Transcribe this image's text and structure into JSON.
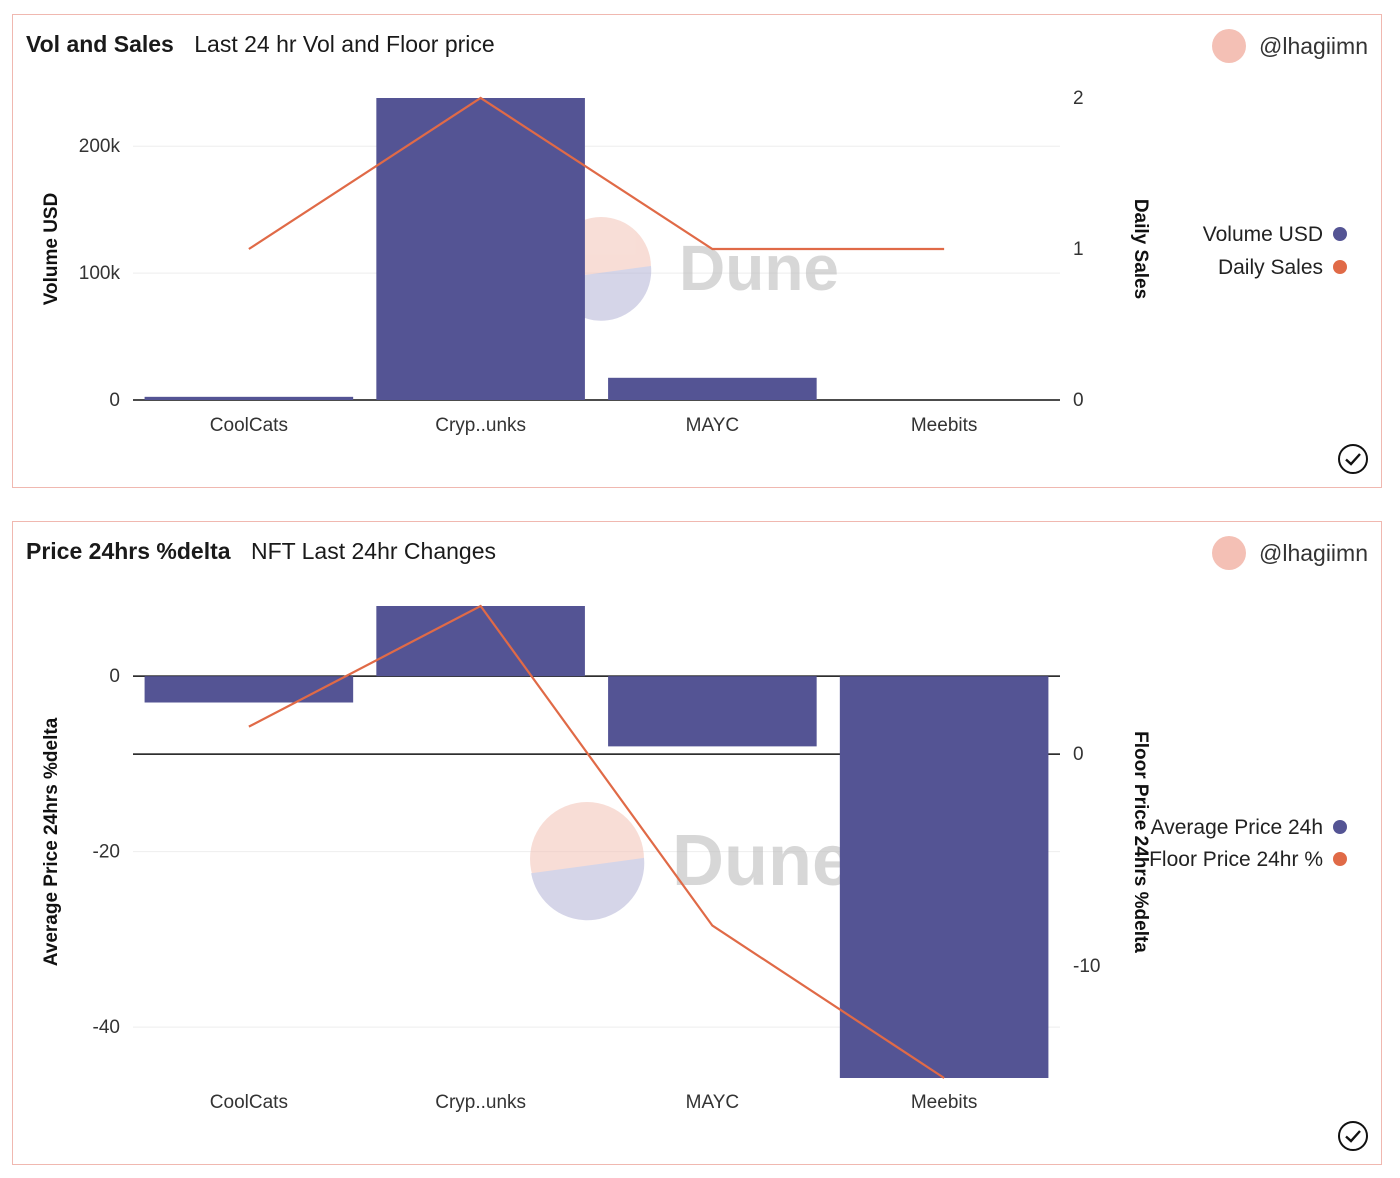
{
  "charts": [
    {
      "title": "Vol and Sales",
      "subtitle": "Last 24 hr Vol and Floor price",
      "author": "@lhagiimn",
      "watermark": "Dune"
    },
    {
      "title": "Price 24hrs %delta",
      "subtitle": "NFT Last 24hr Changes",
      "author": "@lhagiimn",
      "watermark": "Dune"
    }
  ],
  "colors": {
    "bar": "#545494",
    "line": "#e06a47",
    "border": "#f0b8b0",
    "avatar": "#f4c0b5"
  },
  "chart_data": [
    {
      "type": "bar+line",
      "title": "Vol and Sales",
      "subtitle": "Last 24 hr Vol and Floor price",
      "categories": [
        "CoolCats",
        "Cryp..unks",
        "MAYC",
        "Meebits"
      ],
      "series": [
        {
          "name": "Volume USD",
          "type": "bar",
          "axis": "left",
          "values": [
            2500,
            238000,
            17500,
            0
          ]
        },
        {
          "name": "Daily Sales",
          "type": "line",
          "axis": "right",
          "values": [
            1,
            2,
            1,
            1
          ]
        }
      ],
      "ylabel": "Volume USD",
      "y2label": "Daily Sales",
      "ylim": [
        0,
        238000
      ],
      "y2lim": [
        0,
        2
      ],
      "yticks": [
        0,
        100000,
        200000
      ],
      "ytick_labels": [
        "0",
        "100k",
        "200k"
      ],
      "y2ticks": [
        0,
        1,
        2
      ],
      "y2tick_labels": [
        "0",
        "1",
        "2"
      ],
      "legend": "right"
    },
    {
      "type": "bar+line",
      "title": "Price 24hrs %delta",
      "subtitle": "NFT Last 24hr Changes",
      "categories": [
        "CoolCats",
        "Cryp..unks",
        "MAYC",
        "Meebits"
      ],
      "series": [
        {
          "name": "Average Price 24h",
          "type": "bar",
          "axis": "left",
          "values": [
            -3,
            8,
            -8,
            -45.8
          ]
        },
        {
          "name": "Floor Price 24hr %",
          "type": "line",
          "axis": "right",
          "values": [
            1.3,
            7.0,
            -8.1,
            -15.3
          ]
        }
      ],
      "ylabel": "Average Price 24hrs %delta",
      "y2label": "Floor Price 24hrs %delta",
      "ylim": [
        -45.8,
        8
      ],
      "y2lim": [
        -15.3,
        7
      ],
      "yticks": [
        0,
        -20,
        -40
      ],
      "ytick_labels": [
        "0",
        "-20",
        "-40"
      ],
      "y2ticks": [
        0,
        -10
      ],
      "y2tick_labels": [
        "0",
        "-10"
      ],
      "legend": "right"
    }
  ]
}
